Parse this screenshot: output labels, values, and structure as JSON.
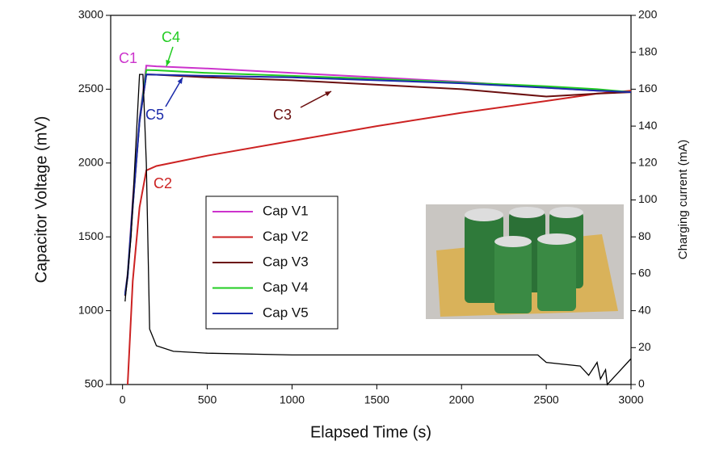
{
  "chart_data": {
    "type": "line",
    "x_label": "Elapsed Time (s)",
    "y_label": "Capacitor Voltage (mV)",
    "y2_label": "Charging current (mA)",
    "xlim": [
      -70,
      3000
    ],
    "xticks": [
      0,
      500,
      1000,
      1500,
      2000,
      2500,
      3000
    ],
    "ylim": [
      500,
      3000
    ],
    "yticks": [
      500,
      1000,
      1500,
      2000,
      2500,
      3000
    ],
    "y2lim": [
      0,
      200
    ],
    "y2ticks": [
      0,
      20,
      40,
      60,
      80,
      100,
      120,
      140,
      160,
      180,
      200
    ],
    "x": [
      15,
      30,
      60,
      100,
      140,
      200,
      500,
      1000,
      1500,
      2000,
      2500,
      2800,
      3000
    ],
    "series": [
      {
        "name": "Cap V1",
        "color": "#cc33cc",
        "values": [
          1120,
          1250,
          1750,
          2300,
          2660,
          2655,
          2640,
          2610,
          2580,
          2550,
          2510,
          2490,
          2480
        ]
      },
      {
        "name": "Cap V2",
        "color": "#cc2222",
        "values": [
          null,
          500,
          1200,
          1700,
          1950,
          1980,
          2050,
          2150,
          2250,
          2340,
          2420,
          2470,
          2490
        ]
      },
      {
        "name": "Cap V3",
        "color": "#6b0f0f",
        "values": [
          1100,
          1230,
          1700,
          2280,
          2600,
          2598,
          2580,
          2560,
          2530,
          2500,
          2450,
          2470,
          2480
        ]
      },
      {
        "name": "Cap V4",
        "color": "#22cc22",
        "values": [
          1110,
          1240,
          1720,
          2290,
          2630,
          2628,
          2610,
          2590,
          2570,
          2545,
          2520,
          2500,
          2480
        ]
      },
      {
        "name": "Cap V5",
        "color": "#1a2aaa",
        "values": [
          1105,
          1235,
          1710,
          2285,
          2600,
          2598,
          2590,
          2580,
          2560,
          2540,
          2510,
          2490,
          2480
        ]
      },
      {
        "color": "#000000",
        "axis": "y2",
        "x": [
          15,
          50,
          100,
          120,
          140,
          160,
          200,
          300,
          500,
          1000,
          1500,
          2000,
          2450,
          2500,
          2700,
          2750,
          2800,
          2820,
          2850,
          2860,
          3000
        ],
        "values": [
          45,
          80,
          168,
          168,
          120,
          30,
          21,
          18,
          17,
          16,
          16,
          16,
          16,
          12,
          10,
          5,
          12,
          3,
          8,
          0,
          14
        ]
      }
    ],
    "annotations": [
      "C1",
      "C2",
      "C3",
      "C4",
      "C5"
    ]
  }
}
